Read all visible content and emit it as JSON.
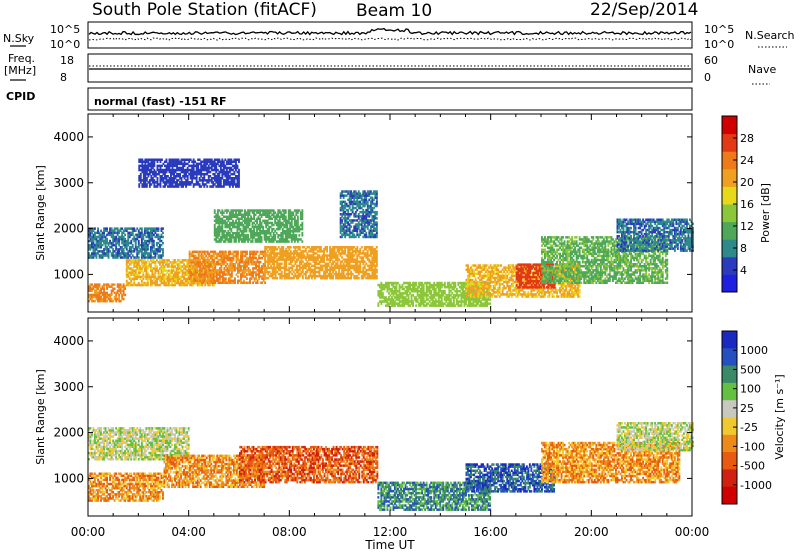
{
  "header": {
    "station": "South Pole Station (fitACF)",
    "beam": "Beam 10",
    "date": "22/Sep/2014"
  },
  "top_panels": {
    "nsky_label": "N.Sky",
    "nsky_ticks": [
      "10^5",
      "10^0"
    ],
    "nsearch_label": "N.Search",
    "nsearch_ticks": [
      "10^5",
      "10^0"
    ],
    "freq_label_1": "Freq.",
    "freq_label_2": "[MHz]",
    "freq_ticks": [
      "18",
      "8"
    ],
    "nave_label": "Nave",
    "nave_ticks": [
      "60",
      "0"
    ],
    "cpid_label": "CPID",
    "cpid_text": "normal (fast) -151 RF"
  },
  "colors": {
    "power_scale": [
      "#1f1fe0",
      "#2b3bbd",
      "#2e8a8a",
      "#4fa85a",
      "#8cc63a",
      "#e8d81a",
      "#f0a020",
      "#ee7a1a",
      "#e23a15",
      "#d00000"
    ],
    "velocity_scale": [
      "#1a2ac0",
      "#2550c0",
      "#3a8a6a",
      "#64c040",
      "#c8c8c0",
      "#f0c830",
      "#ee8a1a",
      "#e85a10",
      "#d02010",
      "#d00000"
    ]
  },
  "chart_data": [
    {
      "type": "heatmap",
      "name": "power",
      "ylabel": "Slant Range [km]",
      "xlabel": "Time UT",
      "x_ticks": [
        "00:00",
        "04:00",
        "08:00",
        "12:00",
        "16:00",
        "20:00",
        "00:00"
      ],
      "xlim_hours": [
        0,
        24
      ],
      "y_ticks": [
        1000,
        2000,
        3000,
        4000
      ],
      "ylim": [
        180,
        4500
      ],
      "colorbar_label": "Power [dB]",
      "colorbar_ticks": [
        4,
        8,
        12,
        16,
        20,
        24,
        28
      ],
      "colorbar_range": [
        0,
        32
      ],
      "regions": [
        {
          "t": [
            0.0,
            3.0
          ],
          "r": [
            1350,
            2000
          ],
          "v": 6
        },
        {
          "t": [
            0.0,
            1.5
          ],
          "r": [
            400,
            800
          ],
          "v": 24
        },
        {
          "t": [
            1.5,
            5.0
          ],
          "r": [
            750,
            1300
          ],
          "v": 20
        },
        {
          "t": [
            4.0,
            7.0
          ],
          "r": [
            800,
            1500
          ],
          "v": 24
        },
        {
          "t": [
            5.0,
            8.5
          ],
          "r": [
            1700,
            2400
          ],
          "v": 10
        },
        {
          "t": [
            7.0,
            11.5
          ],
          "r": [
            900,
            1600
          ],
          "v": 22
        },
        {
          "t": [
            10.0,
            11.5
          ],
          "r": [
            1800,
            2800
          ],
          "v": 6
        },
        {
          "t": [
            11.5,
            16.0
          ],
          "r": [
            300,
            800
          ],
          "v": 14
        },
        {
          "t": [
            15.0,
            19.5
          ],
          "r": [
            500,
            1200
          ],
          "v": 20
        },
        {
          "t": [
            17.0,
            18.5
          ],
          "r": [
            700,
            1200
          ],
          "v": 28
        },
        {
          "t": [
            18.0,
            23.0
          ],
          "r": [
            800,
            1800
          ],
          "v": 12
        },
        {
          "t": [
            21.0,
            24.0
          ],
          "r": [
            1500,
            2200
          ],
          "v": 6
        },
        {
          "t": [
            2.0,
            6.0
          ],
          "r": [
            2900,
            3500
          ],
          "v": 4
        }
      ]
    },
    {
      "type": "heatmap",
      "name": "velocity",
      "ylabel": "Slant Range [km]",
      "xlabel": "Time UT",
      "x_ticks": [
        "00:00",
        "04:00",
        "08:00",
        "12:00",
        "16:00",
        "20:00",
        "00:00"
      ],
      "xlim_hours": [
        0,
        24
      ],
      "y_ticks": [
        1000,
        2000,
        3000,
        4000
      ],
      "ylim": [
        180,
        4500
      ],
      "colorbar_label": "Velocity [m s⁻¹]",
      "colorbar_ticks": [
        "1000",
        "500",
        "100",
        "25",
        "-25",
        "-100",
        "-500",
        "-1000"
      ],
      "regions": [
        {
          "t": [
            0.0,
            4.0
          ],
          "r": [
            1400,
            2100
          ],
          "v": 4
        },
        {
          "t": [
            0.0,
            3.0
          ],
          "r": [
            500,
            1100
          ],
          "v": 6
        },
        {
          "t": [
            3.0,
            7.0
          ],
          "r": [
            800,
            1500
          ],
          "v": 6
        },
        {
          "t": [
            6.0,
            11.5
          ],
          "r": [
            900,
            1700
          ],
          "v": 7
        },
        {
          "t": [
            11.5,
            16.0
          ],
          "r": [
            300,
            900
          ],
          "v": 2
        },
        {
          "t": [
            15.0,
            18.5
          ],
          "r": [
            700,
            1300
          ],
          "v": 1
        },
        {
          "t": [
            18.0,
            23.5
          ],
          "r": [
            900,
            1800
          ],
          "v": 6
        },
        {
          "t": [
            21.0,
            24.0
          ],
          "r": [
            1600,
            2200
          ],
          "v": 4
        }
      ]
    }
  ]
}
